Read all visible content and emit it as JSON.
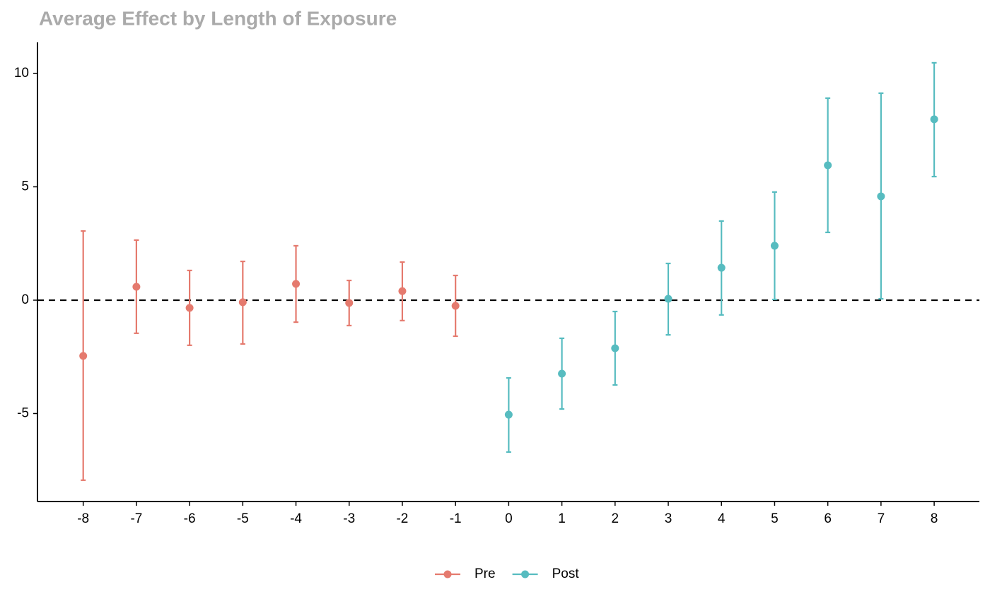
{
  "chart_data": {
    "type": "errorbar",
    "title": "Average Effect by Length of Exposure",
    "xlim": [
      -8.86,
      8.85
    ],
    "ylim": [
      -8.88,
      11.37
    ],
    "xticks": [
      -8,
      -7,
      -6,
      -5,
      -4,
      -3,
      -2,
      -1,
      0,
      1,
      2,
      3,
      4,
      5,
      6,
      7,
      8
    ],
    "yticks": [
      -5,
      0,
      5,
      10
    ],
    "hline": 0,
    "series": [
      {
        "name": "Pre",
        "color": "#e57a6e",
        "x": [
          -8,
          -7,
          -6,
          -5,
          -4,
          -3,
          -2,
          -1
        ],
        "values": [
          -2.46,
          0.59,
          -0.34,
          -0.09,
          0.72,
          -0.12,
          0.4,
          -0.25
        ],
        "lower": [
          -7.94,
          -1.46,
          -1.99,
          -1.93,
          -0.97,
          -1.12,
          -0.9,
          -1.59
        ],
        "upper": [
          3.05,
          2.65,
          1.31,
          1.71,
          2.4,
          0.87,
          1.68,
          1.09
        ]
      },
      {
        "name": "Post",
        "color": "#57bcc0",
        "x": [
          0,
          1,
          2,
          3,
          4,
          5,
          6,
          7,
          8
        ],
        "values": [
          -5.05,
          -3.24,
          -2.12,
          0.06,
          1.43,
          2.4,
          5.95,
          4.58,
          7.98
        ],
        "lower": [
          -6.7,
          -4.8,
          -3.74,
          -1.53,
          -0.65,
          0.03,
          2.99,
          0.06,
          5.45
        ],
        "upper": [
          -3.43,
          -1.68,
          -0.5,
          1.62,
          3.49,
          4.77,
          8.91,
          9.13,
          10.47
        ]
      }
    ]
  }
}
